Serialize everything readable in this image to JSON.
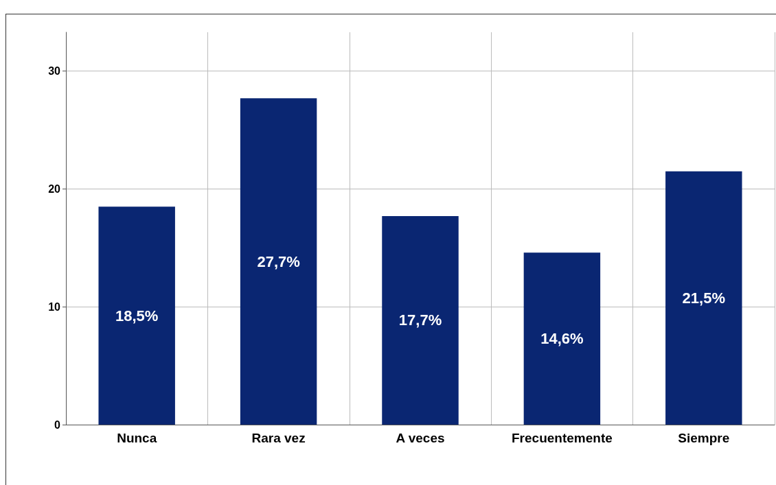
{
  "chart_data": {
    "type": "bar",
    "categories": [
      "Nunca",
      "Rara vez",
      "A veces",
      "Frecuentemente",
      "Siempre"
    ],
    "values": [
      18.5,
      27.7,
      17.7,
      14.6,
      21.5
    ],
    "value_labels": [
      "18,5%",
      "27,7%",
      "17,7%",
      "14,6%",
      "21,5%"
    ],
    "color": "#0a2672",
    "ylim": [
      0,
      33.3
    ],
    "yticks": [
      0,
      10,
      20,
      30
    ],
    "grid": true
  }
}
